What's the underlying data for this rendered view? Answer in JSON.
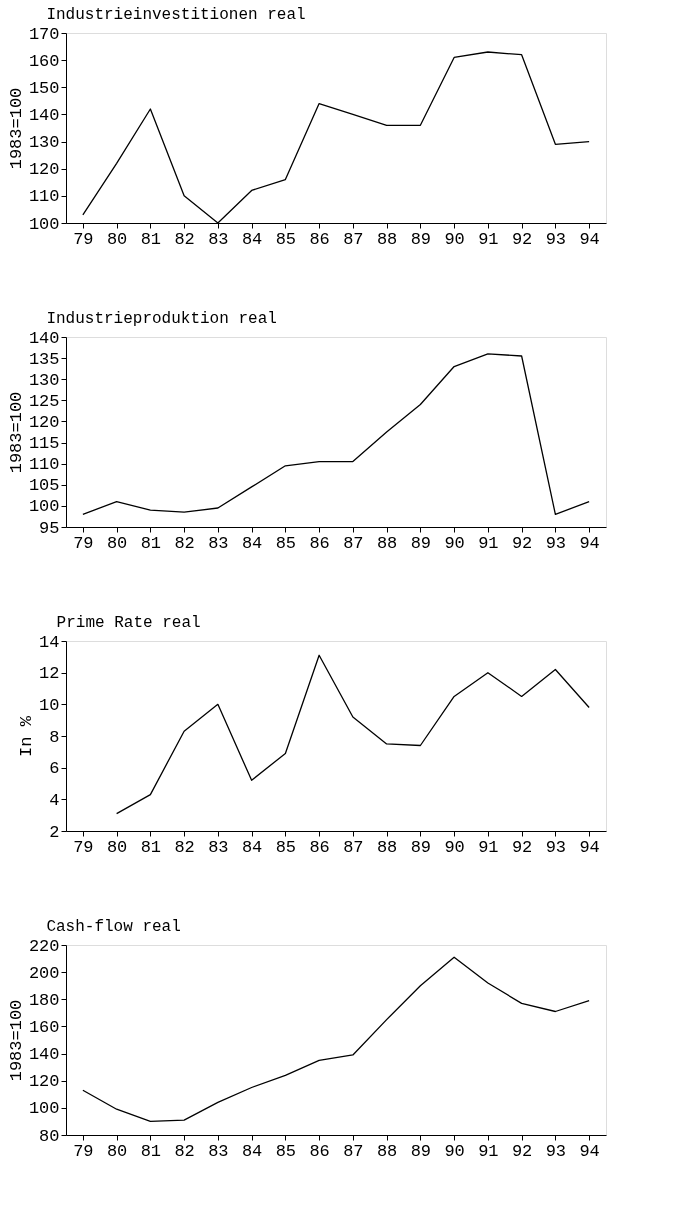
{
  "chart_data": [
    {
      "type": "line",
      "title": "Industrieinvestitionen real",
      "ylabel": "1983=100",
      "categories": [
        "79",
        "80",
        "81",
        "82",
        "83",
        "84",
        "85",
        "86",
        "87",
        "88",
        "89",
        "90",
        "91",
        "92",
        "93",
        "94"
      ],
      "values": [
        103,
        122,
        142,
        110,
        100,
        112,
        116,
        144,
        140,
        136,
        136,
        161,
        163,
        162,
        129,
        130
      ],
      "color": "#000000",
      "ylim": [
        100,
        170
      ],
      "yticks": [
        100,
        110,
        120,
        130,
        140,
        150,
        160,
        170
      ],
      "grid": false
    },
    {
      "type": "line",
      "title": "Industrieproduktion real",
      "ylabel": "1983=100",
      "categories": [
        "79",
        "80",
        "81",
        "82",
        "83",
        "84",
        "85",
        "86",
        "87",
        "88",
        "89",
        "90",
        "91",
        "92",
        "93",
        "94"
      ],
      "values": [
        98,
        101,
        99,
        98.5,
        99.5,
        104.5,
        109.5,
        110.5,
        110.5,
        117.5,
        124,
        133,
        136,
        135.5,
        98,
        101
      ],
      "color": "#000000",
      "ylim": [
        95,
        140
      ],
      "yticks": [
        95,
        100,
        105,
        110,
        115,
        120,
        125,
        130,
        135,
        140
      ],
      "grid": false
    },
    {
      "type": "line",
      "title": "Prime Rate real",
      "ylabel": "In %",
      "categories": [
        "79",
        "80",
        "81",
        "82",
        "83",
        "84",
        "85",
        "86",
        "87",
        "88",
        "89",
        "90",
        "91",
        "92",
        "93",
        "94"
      ],
      "values": [
        null,
        3.1,
        4.3,
        8.3,
        10,
        5.2,
        6.9,
        13.1,
        9.2,
        7.5,
        7.4,
        10.5,
        12,
        10.5,
        12.2,
        9.8
      ],
      "color": "#000000",
      "ylim": [
        2,
        14
      ],
      "yticks": [
        2,
        4,
        6,
        8,
        10,
        12,
        14
      ],
      "grid": false
    },
    {
      "type": "line",
      "title": "Cash-flow real",
      "ylabel": "1983=100",
      "categories": [
        "79",
        "80",
        "81",
        "82",
        "83",
        "84",
        "85",
        "86",
        "87",
        "88",
        "89",
        "90",
        "91",
        "92",
        "93",
        "94"
      ],
      "values": [
        113,
        99,
        90,
        91,
        104,
        115,
        124,
        135,
        139,
        165,
        190,
        211,
        192,
        177,
        171,
        179
      ],
      "color": "#000000",
      "ylim": [
        80,
        220
      ],
      "yticks": [
        80,
        100,
        120,
        140,
        160,
        180,
        200,
        220
      ],
      "grid": false
    }
  ]
}
